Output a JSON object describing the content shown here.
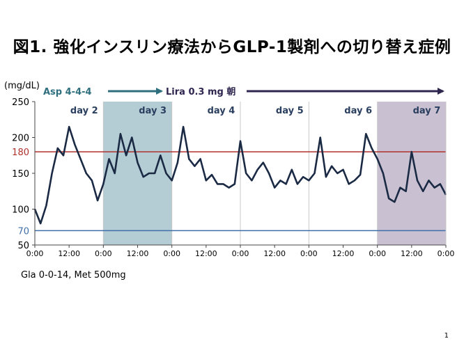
{
  "slide": {
    "title": "図1. 強化インスリン療法からGLP-1製剤への切り替え症例",
    "footnote": "Gla 0-0-14, Met 500mg",
    "page_number": "1"
  },
  "chart_data": {
    "type": "line",
    "title": "",
    "ylabel": "(mg/dL)",
    "xlabel": "",
    "ylim": [
      50,
      250
    ],
    "yticks": [
      50,
      100,
      150,
      200,
      250
    ],
    "reference_lines": [
      {
        "value": 180,
        "label": "180",
        "color": "#b0302c"
      },
      {
        "value": 70,
        "label": "70",
        "color": "#3f6fa8"
      }
    ],
    "x_tick_labels": [
      "0:00",
      "12:00",
      "0:00",
      "12:00",
      "0:00",
      "12:00",
      "0:00",
      "12:00",
      "0:00",
      "12:00",
      "0:00",
      "12:00",
      "0:00"
    ],
    "days": [
      "day 2",
      "day 3",
      "day 4",
      "day 5",
      "day 6",
      "day 7"
    ],
    "shaded_days": [
      {
        "day": "day 3",
        "color": "#b4cdd5"
      },
      {
        "day": "day 7",
        "color": "#c9c0d2"
      }
    ],
    "therapy": [
      {
        "label": "Asp 4-4-4",
        "color": "#2f6f7e"
      },
      {
        "label": "Lira 0.3 mg 朝",
        "color": "#2f2650"
      }
    ],
    "line_color": "#1b2a44",
    "series": [
      {
        "x_hours": [
          0,
          2,
          4,
          6,
          8,
          10,
          12,
          14,
          16,
          18,
          20,
          22,
          24,
          26,
          28,
          30,
          32,
          34,
          36,
          38,
          40,
          42,
          44,
          46,
          48,
          50,
          52,
          54,
          56,
          58,
          60,
          62,
          64,
          66,
          68,
          70,
          72,
          74,
          76,
          78,
          80,
          82,
          84,
          86,
          88,
          90,
          92,
          94,
          96,
          98,
          100,
          102,
          104,
          106,
          108,
          110,
          112,
          114,
          116,
          118,
          120,
          122,
          124,
          126,
          128,
          130,
          132,
          134,
          136,
          138,
          140,
          142,
          144
        ],
        "values": [
          100,
          80,
          105,
          150,
          185,
          175,
          215,
          190,
          170,
          150,
          140,
          112,
          135,
          170,
          150,
          205,
          175,
          200,
          165,
          145,
          150,
          150,
          175,
          150,
          140,
          165,
          215,
          170,
          160,
          170,
          140,
          148,
          135,
          135,
          130,
          135,
          195,
          150,
          140,
          155,
          165,
          150,
          130,
          140,
          135,
          155,
          135,
          145,
          140,
          150,
          200,
          145,
          160,
          150,
          155,
          135,
          140,
          148,
          205,
          185,
          170,
          150,
          115,
          110,
          130,
          125,
          180,
          140,
          125,
          140,
          130,
          135,
          120
        ]
      }
    ]
  }
}
